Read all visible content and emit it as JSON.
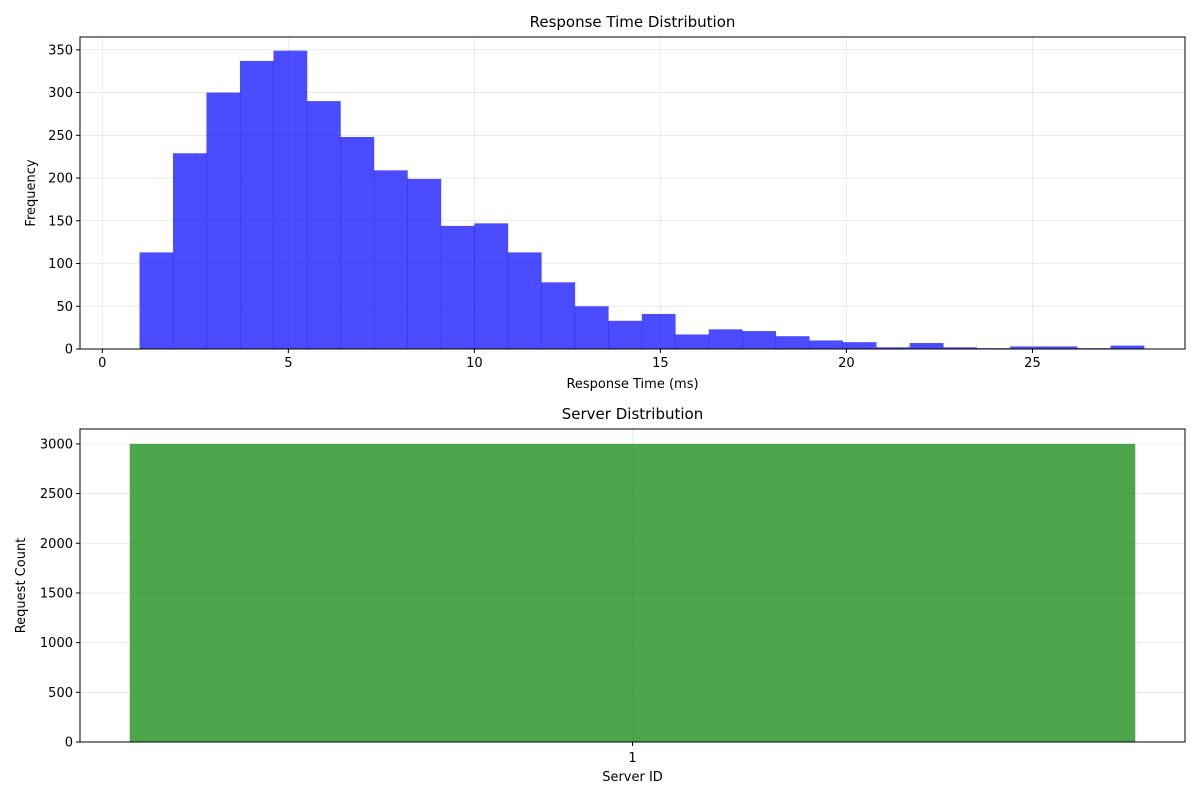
{
  "chart_data": [
    {
      "type": "bar",
      "title": "Response Time Distribution",
      "xlabel": "Response Time (ms)",
      "ylabel": "Frequency",
      "xlim": [
        -0.6,
        29.1
      ],
      "ylim": [
        0,
        365
      ],
      "xticks": [
        0,
        5,
        10,
        15,
        20,
        25
      ],
      "yticks": [
        0,
        50,
        100,
        150,
        200,
        250,
        300,
        350
      ],
      "grid": true,
      "color": "#0000ff",
      "opacity": 0.7,
      "bin_edges": [
        1.0,
        1.9,
        2.8,
        3.7,
        4.6,
        5.5,
        6.4,
        7.3,
        8.2,
        9.1,
        10.0,
        10.9,
        11.8,
        12.7,
        13.6,
        14.5,
        15.4,
        16.3,
        17.2,
        18.1,
        19.0,
        19.9,
        20.8,
        21.7,
        22.6,
        23.5,
        24.4,
        25.3,
        26.2,
        27.1,
        28.0
      ],
      "values": [
        113,
        229,
        300,
        337,
        349,
        290,
        248,
        209,
        199,
        144,
        147,
        113,
        78,
        50,
        33,
        41,
        17,
        23,
        21,
        15,
        10,
        8,
        2,
        7,
        2,
        1,
        3,
        3,
        1,
        4
      ]
    },
    {
      "type": "bar",
      "title": "Server Distribution",
      "xlabel": "Server ID",
      "ylabel": "Request Count",
      "categories": [
        "1"
      ],
      "values": [
        3000
      ],
      "ylim": [
        0,
        3150
      ],
      "yticks": [
        0,
        500,
        1000,
        1500,
        2000,
        2500,
        3000
      ],
      "grid": true,
      "color": "#008000",
      "opacity": 0.7
    }
  ]
}
